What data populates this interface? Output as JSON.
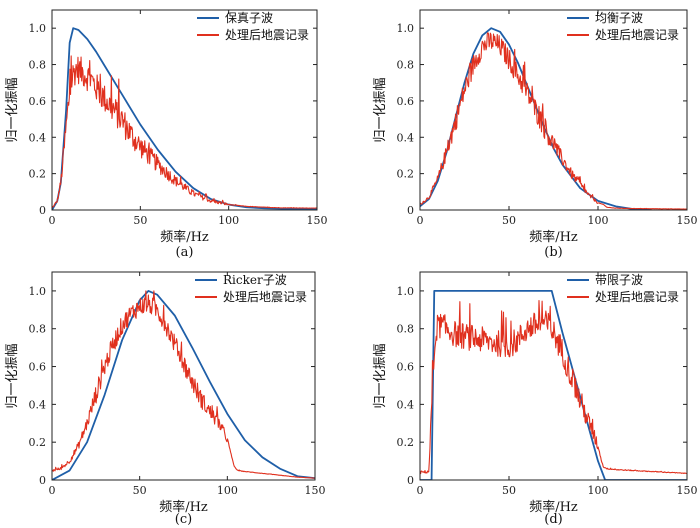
{
  "colors": {
    "blue": "#1f5fa8",
    "red": "#e0301e",
    "axis": "#222222"
  },
  "chart_data": [
    {
      "type": "line",
      "caption": "(a)",
      "xlabel": "频率/Hz",
      "ylabel": "归一化振幅",
      "xlim": [
        0,
        150
      ],
      "ylim": [
        0,
        1.1
      ],
      "xticks": [
        0,
        50,
        100,
        150
      ],
      "yticks": [
        0,
        0.2,
        0.4,
        0.6,
        0.8,
        1.0
      ],
      "ytick_labels": [
        "0",
        "0.2",
        "0.4",
        "0.6",
        "0.8",
        "1.0"
      ],
      "legend_position": "top-right",
      "series": [
        {
          "name": "保真子波",
          "color": "blue",
          "shape": "fidelity",
          "x": [
            0,
            3,
            5,
            8,
            10,
            12,
            15,
            20,
            25,
            30,
            40,
            50,
            60,
            70,
            80,
            90,
            100,
            110,
            120,
            130,
            140,
            150
          ],
          "y": [
            0,
            0.05,
            0.15,
            0.55,
            0.92,
            1.0,
            0.99,
            0.94,
            0.87,
            0.79,
            0.63,
            0.47,
            0.33,
            0.21,
            0.12,
            0.06,
            0.03,
            0.015,
            0.01,
            0.008,
            0.006,
            0.005
          ]
        },
        {
          "name": "处理后地震记录",
          "color": "red",
          "noise": 0.08,
          "x": [
            0,
            3,
            5,
            8,
            10,
            12,
            14,
            18,
            22,
            26,
            30,
            35,
            40,
            45,
            50,
            60,
            70,
            80,
            90,
            100,
            110,
            120,
            130,
            140,
            150
          ],
          "y": [
            0.01,
            0.05,
            0.15,
            0.45,
            0.65,
            0.75,
            0.78,
            0.75,
            0.72,
            0.66,
            0.61,
            0.55,
            0.49,
            0.41,
            0.35,
            0.25,
            0.16,
            0.09,
            0.05,
            0.03,
            0.02,
            0.015,
            0.012,
            0.011,
            0.01
          ]
        }
      ]
    },
    {
      "type": "line",
      "caption": "(b)",
      "xlabel": "频率/Hz",
      "ylabel": "归一化振幅",
      "xlim": [
        0,
        150
      ],
      "ylim": [
        0,
        1.1
      ],
      "xticks": [
        0,
        50,
        100,
        150
      ],
      "yticks": [
        0,
        0.2,
        0.4,
        0.6,
        0.8,
        1.0
      ],
      "ytick_labels": [
        "0",
        "0.2",
        "0.4",
        "0.6",
        "0.8",
        "1.0"
      ],
      "legend_position": "top-right",
      "series": [
        {
          "name": "均衡子波",
          "color": "blue",
          "x": [
            0,
            5,
            10,
            15,
            20,
            25,
            30,
            35,
            40,
            45,
            50,
            55,
            60,
            65,
            70,
            75,
            80,
            90,
            100,
            110,
            120,
            130
          ],
          "y": [
            0.02,
            0.06,
            0.16,
            0.32,
            0.51,
            0.7,
            0.86,
            0.96,
            1.0,
            0.98,
            0.91,
            0.81,
            0.69,
            0.57,
            0.45,
            0.34,
            0.25,
            0.12,
            0.05,
            0.02,
            0.005,
            0.0
          ]
        },
        {
          "name": "处理后地震记录",
          "color": "red",
          "noise": 0.06,
          "x": [
            0,
            5,
            10,
            15,
            20,
            25,
            30,
            35,
            40,
            45,
            50,
            55,
            60,
            65,
            70,
            75,
            80,
            85,
            90,
            95,
            100,
            103,
            105,
            110,
            120,
            130,
            140,
            150
          ],
          "y": [
            0.03,
            0.07,
            0.17,
            0.32,
            0.49,
            0.66,
            0.8,
            0.9,
            0.93,
            0.9,
            0.83,
            0.74,
            0.65,
            0.55,
            0.45,
            0.36,
            0.28,
            0.2,
            0.14,
            0.08,
            0.04,
            0.03,
            0.015,
            0.01,
            0.008,
            0.007,
            0.006,
            0.005
          ]
        }
      ]
    },
    {
      "type": "line",
      "caption": "(c)",
      "xlabel": "频率/Hz",
      "ylabel": "归一化振幅",
      "xlim": [
        0,
        150
      ],
      "ylim": [
        0,
        1.1
      ],
      "xticks": [
        0,
        50,
        100,
        150
      ],
      "yticks": [
        0,
        0.2,
        0.4,
        0.6,
        0.8,
        1.0
      ],
      "ytick_labels": [
        "0",
        "0.2",
        "0.4",
        "0.6",
        "0.8",
        "1.0"
      ],
      "legend_position": "top-right",
      "series": [
        {
          "name": "Ricker子波",
          "color": "blue",
          "x": [
            0,
            10,
            20,
            30,
            40,
            50,
            55,
            60,
            70,
            80,
            90,
            100,
            110,
            120,
            130,
            140,
            150
          ],
          "y": [
            0.0,
            0.05,
            0.2,
            0.45,
            0.74,
            0.95,
            1.0,
            0.98,
            0.87,
            0.7,
            0.52,
            0.35,
            0.21,
            0.12,
            0.06,
            0.02,
            0.01
          ]
        },
        {
          "name": "处理后地震记录",
          "color": "red",
          "noise": 0.05,
          "x": [
            0,
            5,
            10,
            15,
            20,
            25,
            30,
            35,
            40,
            45,
            50,
            55,
            60,
            65,
            70,
            75,
            80,
            85,
            90,
            95,
            100,
            102,
            104,
            106,
            110,
            120,
            130,
            140,
            150
          ],
          "y": [
            0.05,
            0.06,
            0.1,
            0.18,
            0.3,
            0.45,
            0.6,
            0.72,
            0.82,
            0.88,
            0.92,
            0.93,
            0.9,
            0.82,
            0.72,
            0.62,
            0.52,
            0.43,
            0.36,
            0.3,
            0.22,
            0.14,
            0.07,
            0.05,
            0.045,
            0.035,
            0.025,
            0.015,
            0.01
          ]
        }
      ]
    },
    {
      "type": "line",
      "caption": "(d)",
      "xlabel": "频率/Hz",
      "ylabel": "归一化振幅",
      "xlim": [
        0,
        150
      ],
      "ylim": [
        0,
        1.1
      ],
      "xticks": [
        0,
        50,
        100,
        150
      ],
      "yticks": [
        0,
        0.2,
        0.4,
        0.6,
        0.8,
        1.0
      ],
      "ytick_labels": [
        "0",
        "0.2",
        "0.4",
        "0.6",
        "0.8",
        "1.0"
      ],
      "legend_position": "top-right",
      "series": [
        {
          "name": "带限子波",
          "color": "blue",
          "x": [
            0,
            6.5,
            8,
            10,
            20,
            30,
            40,
            50,
            60,
            70,
            74,
            80,
            90,
            100,
            104,
            110,
            150
          ],
          "y": [
            0,
            0,
            1.0,
            1.0,
            1.0,
            1.0,
            1.0,
            1.0,
            1.0,
            1.0,
            1.0,
            0.78,
            0.44,
            0.1,
            0,
            0,
            0
          ]
        },
        {
          "name": "处理后地震记录",
          "color": "red",
          "noise": 0.07,
          "x": [
            0,
            5,
            7,
            9,
            11,
            15,
            20,
            30,
            40,
            50,
            55,
            60,
            65,
            70,
            72,
            75,
            80,
            85,
            90,
            95,
            100,
            102,
            103,
            105,
            110,
            120,
            130,
            140,
            150
          ],
          "y": [
            0.04,
            0.045,
            0.5,
            0.8,
            0.82,
            0.8,
            0.77,
            0.75,
            0.73,
            0.71,
            0.74,
            0.8,
            0.82,
            0.83,
            0.82,
            0.78,
            0.68,
            0.55,
            0.42,
            0.3,
            0.18,
            0.1,
            0.07,
            0.06,
            0.055,
            0.05,
            0.045,
            0.04,
            0.035
          ]
        }
      ]
    }
  ]
}
